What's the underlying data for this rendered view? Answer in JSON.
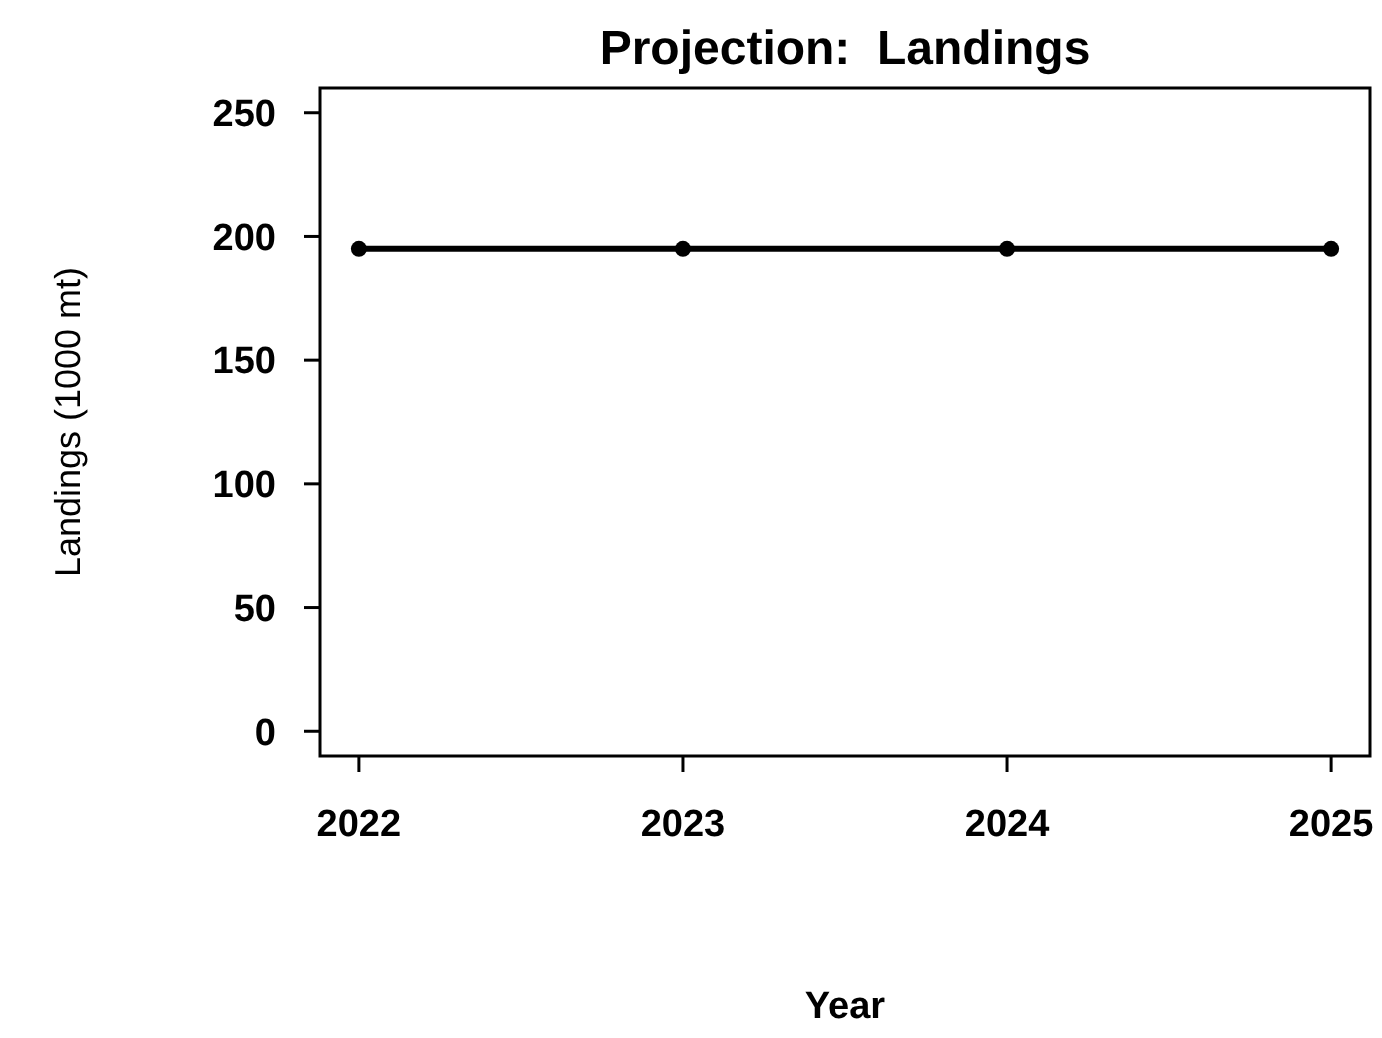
{
  "chart_data": {
    "type": "line",
    "title": "Projection:  Landings",
    "xlabel": "Year",
    "ylabel": "Landings (1000 mt)",
    "x": [
      2022,
      2023,
      2024,
      2025
    ],
    "series": [
      {
        "color": "#000000",
        "values": [
          195,
          195,
          195,
          195
        ]
      }
    ],
    "xlim": [
      2021.88,
      2025.12
    ],
    "xticks": [
      2022,
      2023,
      2024,
      2025
    ],
    "ylim": [
      -10,
      260
    ],
    "yticks": [
      0,
      50,
      100,
      150,
      200,
      250
    ],
    "marker": "circle",
    "line_style": "solid"
  }
}
